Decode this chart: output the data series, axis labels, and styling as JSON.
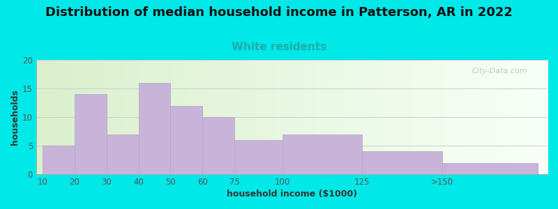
{
  "title": "Distribution of median household income in Patterson, AR in 2022",
  "subtitle": "White residents",
  "xlabel": "household income ($1000)",
  "ylabel": "households",
  "bar_labels": [
    "10",
    "20",
    "30",
    "40",
    "50",
    "60",
    "75",
    "100",
    "125",
    ">150"
  ],
  "bar_heights": [
    5,
    14,
    7,
    16,
    12,
    10,
    6,
    7,
    4,
    2
  ],
  "bar_color": "#c8b4d8",
  "bar_edge_color": "#b8a0cc",
  "background_color": "#00e8e8",
  "plot_bg_gradient_left": "#daf0cc",
  "plot_bg_gradient_right": "#f8fff8",
  "title_fontsize": 13,
  "subtitle_fontsize": 11,
  "subtitle_color": "#22aaaa",
  "axis_label_fontsize": 9,
  "tick_fontsize": 8.5,
  "tick_color": "#555555",
  "ylim": [
    0,
    20
  ],
  "yticks": [
    0,
    5,
    10,
    15,
    20
  ],
  "watermark": "City-Data.com",
  "bar_lefts": [
    5,
    15,
    25,
    35,
    45,
    55,
    65,
    80,
    105,
    130
  ],
  "bar_widths": [
    10,
    10,
    10,
    10,
    10,
    10,
    15,
    25,
    25,
    30
  ],
  "xlim_left": 3,
  "xlim_right": 163
}
